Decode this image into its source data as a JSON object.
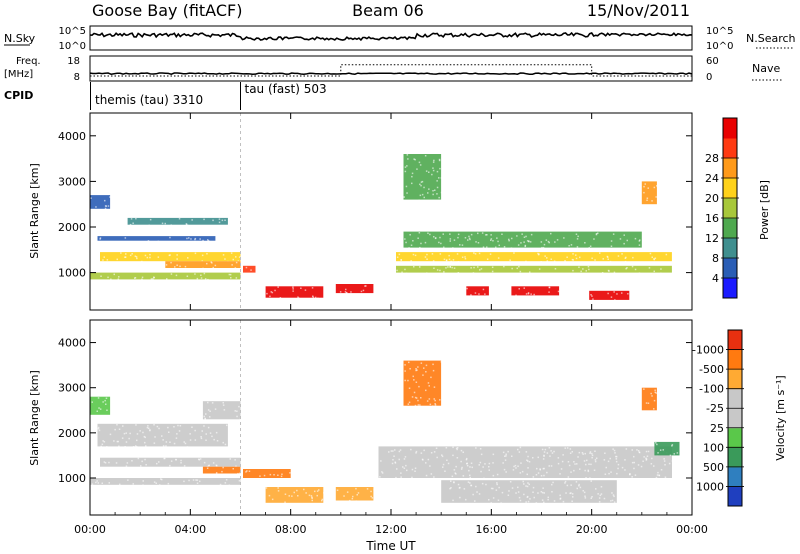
{
  "header": {
    "station": "Goose Bay (fitACF)",
    "beam": "Beam 06",
    "date": "15/Nov/2011"
  },
  "top_panels": {
    "nsky_label": "N.Sky",
    "nsky_ticks": [
      "10^5",
      "10^0"
    ],
    "nsearch_label": "N.Search",
    "nsearch_ticks": [
      "10^5",
      "10^0"
    ],
    "freq_label_line1": "Freq.",
    "freq_label_line2": "[MHz]",
    "freq_ticks": [
      "18",
      "8"
    ],
    "nave_label": "Nave",
    "nave_ticks": [
      "60",
      "0"
    ],
    "cpid_label": "CPID",
    "cpid_segments": [
      {
        "name": "themis (tau) 3310",
        "start_hour": 0,
        "end_hour": 6
      },
      {
        "name": "tau (fast) 503",
        "start_hour": 6,
        "end_hour": 24
      }
    ],
    "nave_step": {
      "low": 10,
      "high": 38,
      "start_hour": 10,
      "end_hour": 20
    }
  },
  "chart_data": [
    {
      "type": "heatmap",
      "panel": "power",
      "ylabel": "Slant Range [km]",
      "ylim": [
        180,
        4500
      ],
      "yticks": [
        "1000",
        "2000",
        "3000",
        "4000"
      ],
      "xlim": [
        0,
        24
      ],
      "colorbar": {
        "label": "Power [dB]",
        "ticks": [
          "4",
          "8",
          "12",
          "16",
          "20",
          "24",
          "28"
        ],
        "colors": [
          "#1b1bff",
          "#2a5db5",
          "#3f8f8f",
          "#4fa94f",
          "#a8c83a",
          "#ffd21a",
          "#ff9a1a",
          "#ff3a12",
          "#e80000"
        ]
      },
      "regions": [
        {
          "t0": 0.0,
          "t1": 6.0,
          "r0": 850,
          "r1": 1000,
          "level": 4
        },
        {
          "t0": 0.4,
          "t1": 6.0,
          "r0": 1250,
          "r1": 1450,
          "level": 5
        },
        {
          "t0": 3.0,
          "t1": 6.0,
          "r0": 1100,
          "r1": 1250,
          "level": 6
        },
        {
          "t0": 0.3,
          "t1": 5.0,
          "r0": 1700,
          "r1": 1800,
          "level": 1
        },
        {
          "t0": 1.5,
          "t1": 5.5,
          "r0": 2050,
          "r1": 2200,
          "level": 2
        },
        {
          "t0": 0.0,
          "t1": 0.8,
          "r0": 2400,
          "r1": 2700,
          "level": 1
        },
        {
          "t0": 6.1,
          "t1": 6.6,
          "r0": 1000,
          "r1": 1150,
          "level": 7
        },
        {
          "t0": 7.0,
          "t1": 9.3,
          "r0": 450,
          "r1": 700,
          "level": 8
        },
        {
          "t0": 9.8,
          "t1": 11.3,
          "r0": 550,
          "r1": 750,
          "level": 8
        },
        {
          "t0": 12.2,
          "t1": 23.2,
          "r0": 1250,
          "r1": 1450,
          "level": 5
        },
        {
          "t0": 12.2,
          "t1": 23.2,
          "r0": 1000,
          "r1": 1150,
          "level": 4
        },
        {
          "t0": 12.5,
          "t1": 22.0,
          "r0": 1550,
          "r1": 1900,
          "level": 3
        },
        {
          "t0": 15.0,
          "t1": 15.9,
          "r0": 500,
          "r1": 700,
          "level": 8
        },
        {
          "t0": 16.8,
          "t1": 18.7,
          "r0": 500,
          "r1": 700,
          "level": 8
        },
        {
          "t0": 19.9,
          "t1": 21.5,
          "r0": 400,
          "r1": 600,
          "level": 8
        },
        {
          "t0": 12.5,
          "t1": 14.0,
          "r0": 2600,
          "r1": 3600,
          "level": 3
        },
        {
          "t0": 22.0,
          "t1": 22.6,
          "r0": 2500,
          "r1": 3000,
          "level": 6
        }
      ]
    },
    {
      "type": "heatmap",
      "panel": "velocity",
      "ylabel": "Slant Range [km]",
      "ylim": [
        180,
        4500
      ],
      "yticks": [
        "1000",
        "2000",
        "3000",
        "4000"
      ],
      "xlim": [
        0,
        24
      ],
      "xlabel": "Time UT",
      "xticks": [
        "00:00",
        "04:00",
        "08:00",
        "12:00",
        "16:00",
        "20:00",
        "00:00"
      ],
      "colorbar": {
        "label": "Velocity [m s⁻¹]",
        "ticks": [
          "1000",
          "500",
          "100",
          "25",
          "-25",
          "-100",
          "-500",
          "-1000"
        ],
        "colors": [
          "#1f3fbf",
          "#2f7fbf",
          "#3a9a5a",
          "#5ac84a",
          "#c8c8c8",
          "#c8c8c8",
          "#ffaa33",
          "#ff7a10",
          "#e83010"
        ]
      },
      "regions": [
        {
          "t0": 0.0,
          "t1": 6.0,
          "r0": 850,
          "r1": 1000,
          "level": 4
        },
        {
          "t0": 0.4,
          "t1": 6.0,
          "r0": 1250,
          "r1": 1450,
          "level": 4
        },
        {
          "t0": 0.3,
          "t1": 5.5,
          "r0": 1700,
          "r1": 2200,
          "level": 4
        },
        {
          "t0": 4.5,
          "t1": 6.0,
          "r0": 2300,
          "r1": 2700,
          "level": 4
        },
        {
          "t0": 4.5,
          "t1": 6.0,
          "r0": 1100,
          "r1": 1250,
          "level": 7
        },
        {
          "t0": 6.1,
          "t1": 8.0,
          "r0": 1000,
          "r1": 1200,
          "level": 7
        },
        {
          "t0": 7.0,
          "t1": 9.3,
          "r0": 450,
          "r1": 800,
          "level": 6
        },
        {
          "t0": 9.8,
          "t1": 11.3,
          "r0": 500,
          "r1": 800,
          "level": 6
        },
        {
          "t0": 11.5,
          "t1": 23.2,
          "r0": 1000,
          "r1": 1700,
          "level": 4
        },
        {
          "t0": 14.0,
          "t1": 21.0,
          "r0": 450,
          "r1": 950,
          "level": 4
        },
        {
          "t0": 12.5,
          "t1": 14.0,
          "r0": 2600,
          "r1": 3600,
          "level": 7
        },
        {
          "t0": 22.0,
          "t1": 22.6,
          "r0": 2500,
          "r1": 3000,
          "level": 7
        },
        {
          "t0": 0.0,
          "t1": 0.8,
          "r0": 2400,
          "r1": 2800,
          "level": 3
        },
        {
          "t0": 22.5,
          "t1": 23.5,
          "r0": 1500,
          "r1": 1800,
          "level": 2
        }
      ]
    }
  ]
}
